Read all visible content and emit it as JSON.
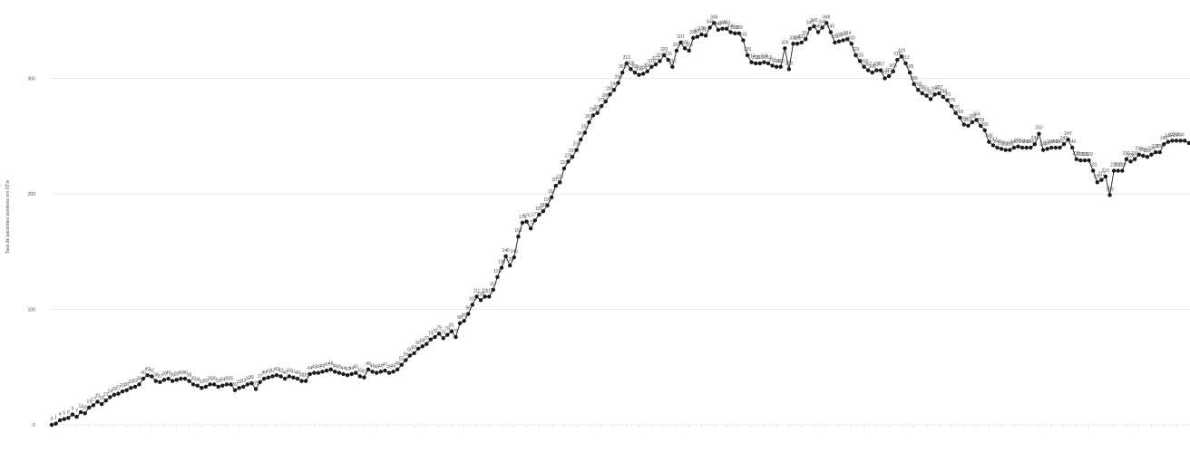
{
  "chart_data": {
    "type": "line",
    "title": "",
    "xlabel": "",
    "ylabel": "Taxa de pacientes positivos em UTIs",
    "ylim": [
      0,
      360
    ],
    "yticks": [
      0,
      100,
      200,
      300
    ],
    "grid": true,
    "colors": {
      "line": "#333333",
      "point": "#1a1a1a",
      "grid": "#ebebeb",
      "text": "#4d4d4d"
    },
    "y": [
      0,
      1,
      4,
      5,
      6,
      9,
      7,
      11,
      10,
      15,
      17,
      20,
      18,
      21,
      24,
      26,
      27,
      29,
      30,
      32,
      33,
      35,
      40,
      43,
      42,
      38,
      37,
      39,
      40,
      38,
      39,
      40,
      40,
      38,
      35,
      34,
      32,
      33,
      35,
      35,
      33,
      34,
      35,
      35,
      30,
      32,
      33,
      35,
      36,
      31,
      37,
      40,
      41,
      42,
      43,
      42,
      40,
      42,
      41,
      40,
      38,
      38,
      44,
      45,
      45,
      46,
      47,
      48,
      46,
      45,
      44,
      43,
      44,
      45,
      42,
      41,
      48,
      46,
      45,
      46,
      47,
      45,
      46,
      48,
      52,
      56,
      60,
      62,
      66,
      68,
      70,
      74,
      76,
      79,
      75,
      78,
      81,
      76,
      88,
      90,
      96,
      104,
      111,
      108,
      111,
      111,
      117,
      128,
      136,
      146,
      138,
      145,
      163,
      175,
      176,
      170,
      177,
      182,
      185,
      190,
      197,
      207,
      210,
      222,
      228,
      232,
      238,
      247,
      253,
      262,
      268,
      270,
      276,
      280,
      286,
      290,
      296,
      305,
      313,
      308,
      305,
      303,
      304,
      306,
      310,
      312,
      315,
      320,
      316,
      310,
      324,
      331,
      326,
      324,
      335,
      336,
      338,
      337,
      344,
      348,
      342,
      343,
      343,
      340,
      339,
      339,
      333,
      320,
      314,
      313,
      313,
      314,
      313,
      311,
      310,
      310,
      326,
      308,
      330,
      330,
      331,
      334,
      343,
      345,
      340,
      344,
      348,
      340,
      331,
      332,
      333,
      334,
      330,
      320,
      315,
      310,
      307,
      305,
      307,
      307,
      300,
      302,
      306,
      316,
      319,
      313,
      305,
      295,
      290,
      287,
      285,
      282,
      286,
      287,
      284,
      281,
      276,
      270,
      266,
      260,
      259,
      262,
      264,
      259,
      255,
      245,
      242,
      240,
      239,
      238,
      238,
      240,
      241,
      240,
      240,
      240,
      243,
      252,
      238,
      239,
      240,
      240,
      240,
      243,
      247,
      240,
      230,
      229,
      229,
      229,
      220,
      210,
      212,
      215,
      199,
      220,
      220,
      220,
      230,
      228,
      230,
      234,
      233,
      232,
      234,
      236,
      236,
      243,
      245,
      246,
      246,
      246,
      246,
      244,
      246,
      248
    ],
    "annotation_labels": [
      "0",
      "1",
      "4",
      "5",
      "6",
      "9",
      "7",
      "11",
      "10",
      "15",
      "17",
      "20",
      "18",
      "21",
      "24",
      "26",
      "27",
      "29",
      "30",
      "32",
      "33",
      "35",
      "40",
      "43",
      "42",
      "38",
      "37",
      "39",
      "40",
      "38",
      "39",
      "40",
      "40",
      "38",
      "35",
      "34",
      "32",
      "33",
      "35",
      "35",
      "33",
      "34",
      "35",
      "35",
      "30",
      "32",
      "33",
      "35",
      "36",
      "31",
      "37",
      "40",
      "41",
      "42",
      "43",
      "42",
      "40",
      "42",
      "41",
      "40",
      "38",
      "38",
      "44",
      "45",
      "45",
      "46",
      "47",
      "48",
      "46",
      "45",
      "44",
      "43",
      "44",
      "45",
      "42",
      "41",
      "48",
      "46",
      "45",
      "46",
      "47",
      "45",
      "46",
      "48",
      "52",
      "56",
      "60",
      "62",
      "66",
      "68",
      "70",
      "74",
      "76",
      "79",
      "75",
      "78",
      "81",
      "76",
      "88",
      "90",
      "96",
      "104",
      "111",
      "108",
      "111",
      "111",
      "117",
      "128",
      "136",
      "146",
      "138",
      "145",
      "163",
      "175",
      "176",
      "170",
      "177",
      "182",
      "185",
      "190",
      "197",
      "207",
      "210",
      "222",
      "228",
      "232",
      "238",
      "247",
      "253",
      "262",
      "268",
      "270",
      "276",
      "280",
      "286",
      "290",
      "296",
      "305",
      "313",
      "308",
      "305",
      "303",
      "304",
      "306",
      "310",
      "312",
      "315",
      "320",
      "316",
      "310",
      "324",
      "331",
      "326",
      "324",
      "335",
      "336",
      "338",
      "337",
      "344",
      "348",
      "342",
      "343",
      "343",
      "340",
      "339",
      "339",
      "333",
      "320",
      "314",
      "313",
      "313",
      "314",
      "313",
      "311",
      "310",
      "310",
      "326",
      "308",
      "330",
      "330",
      "331",
      "334",
      "343",
      "345",
      "340",
      "344",
      "348",
      "340",
      "331",
      "332",
      "333",
      "334",
      "330",
      "320",
      "315",
      "310",
      "307",
      "305",
      "307",
      "307",
      "300",
      "302",
      "306",
      "316",
      "319",
      "313",
      "305",
      "295",
      "290",
      "287",
      "285",
      "282",
      "286",
      "287",
      "284",
      "281",
      "276",
      "270",
      "266",
      "260",
      "259",
      "262",
      "264",
      "259",
      "255",
      "245",
      "242",
      "240",
      "239",
      "238",
      "238",
      "240",
      "241",
      "240",
      "240",
      "240",
      "243",
      "252",
      "238",
      "239",
      "240",
      "240",
      "240",
      "243",
      "247",
      "240",
      "230",
      "229",
      "229",
      "229",
      "220",
      "210",
      "212",
      "215",
      "199",
      "220",
      "220",
      "220",
      "230",
      "228",
      "230",
      "234",
      "233",
      "232",
      "234",
      "236",
      "236",
      "243",
      "245",
      "246",
      "246",
      "246",
      "246",
      "244",
      "246",
      "248"
    ]
  }
}
